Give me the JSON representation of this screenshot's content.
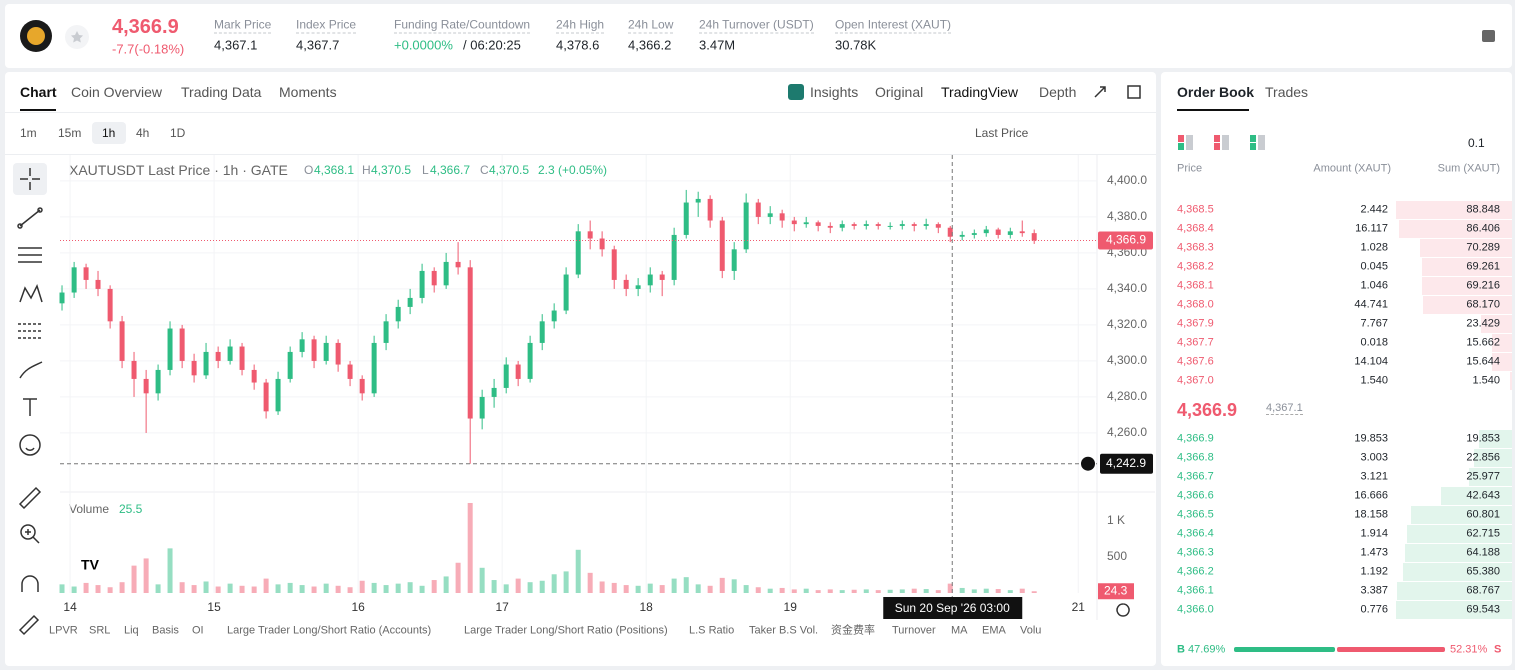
{
  "header": {
    "price": "4,366.9",
    "change": "-7.7(-0.18%)",
    "stats": [
      {
        "label": "Mark Price",
        "value": "4,367.1"
      },
      {
        "label": "Index Price",
        "value": "4,367.7"
      },
      {
        "label": "Funding Rate/Countdown",
        "value": "+0.0000%",
        "extra": "/ 06:20:25"
      },
      {
        "label": "24h High",
        "value": "4,378.6"
      },
      {
        "label": "24h Low",
        "value": "4,366.2"
      },
      {
        "label": "24h Turnover (USDT)",
        "value": "3.47M"
      },
      {
        "label": "Open Interest (XAUT)",
        "value": "30.78K"
      }
    ]
  },
  "tabs": [
    "Chart",
    "Coin Overview",
    "Trading Data",
    "Moments"
  ],
  "view_tabs": [
    "Insights",
    "Original",
    "TradingView",
    "Depth"
  ],
  "timeframes": [
    "1m",
    "15m",
    "1h",
    "4h",
    "1D"
  ],
  "price_type": "Last Price",
  "indicators": [
    "LPVR",
    "SRL",
    "Liq",
    "Basis",
    "OI",
    "Large Trader Long/Short Ratio (Accounts)",
    "Large Trader Long/Short Ratio (Positions)",
    "L.S Ratio",
    "Taker B.S Vol.",
    "资金费率",
    "Turnover",
    "MA",
    "EMA",
    "Volu"
  ],
  "chart_data": {
    "type": "candlestick",
    "title": "XAUTUSDT Last Price · 1h · GATE",
    "legend": {
      "o_label": "O",
      "open": "4,368.1",
      "h_label": "H",
      "high": "4,370.5",
      "l_label": "L",
      "low": "4,366.7",
      "c_label": "C",
      "close": "4,370.5",
      "change": "2.3 (+0.05%)"
    },
    "up_color": "#2ebd85",
    "down_color": "#ef5a6f",
    "xlim": [
      13.93,
      21.13
    ],
    "xticks": [
      14,
      15,
      16,
      17,
      18,
      19,
      21
    ],
    "ylim": [
      4228.3,
      4414.4
    ],
    "yticks": [
      {
        "value": 4260,
        "label": "4,260.0"
      },
      {
        "value": 4280,
        "label": "4,280.0"
      },
      {
        "value": 4300,
        "label": "4,300.0"
      },
      {
        "value": 4320,
        "label": "4,320.0"
      },
      {
        "value": 4340,
        "label": "4,340.0"
      },
      {
        "value": 4360,
        "label": "4,360.0"
      },
      {
        "value": 4380,
        "label": "4,380.0"
      },
      {
        "value": 4400,
        "label": "4,400.0"
      }
    ],
    "x": [
      13.944,
      14.028,
      14.111,
      14.194,
      14.278,
      14.361,
      14.444,
      14.528,
      14.611,
      14.694,
      14.778,
      14.861,
      14.944,
      15.028,
      15.111,
      15.194,
      15.278,
      15.361,
      15.444,
      15.528,
      15.611,
      15.694,
      15.778,
      15.861,
      15.944,
      16.028,
      16.111,
      16.194,
      16.278,
      16.361,
      16.444,
      16.528,
      16.611,
      16.694,
      16.778,
      16.861,
      16.944,
      17.028,
      17.111,
      17.194,
      17.278,
      17.361,
      17.444,
      17.528,
      17.611,
      17.694,
      17.778,
      17.861,
      17.944,
      18.028,
      18.111,
      18.194,
      18.278,
      18.361,
      18.444,
      18.528,
      18.611,
      18.694,
      18.778,
      18.861,
      18.944,
      19.028,
      19.111,
      19.194,
      19.278,
      19.361,
      19.444,
      19.528,
      19.611,
      19.694,
      19.778,
      19.861,
      19.944,
      20.028,
      20.111,
      20.194,
      20.278,
      20.361,
      20.444,
      20.528,
      20.611,
      20.694
    ],
    "ohlc": [
      [
        4332,
        4342,
        4328,
        4338
      ],
      [
        4338,
        4355,
        4335,
        4352
      ],
      [
        4352,
        4354,
        4340,
        4345
      ],
      [
        4345,
        4350,
        4336,
        4340
      ],
      [
        4340,
        4342,
        4318,
        4322
      ],
      [
        4322,
        4325,
        4296,
        4300
      ],
      [
        4300,
        4305,
        4280,
        4290
      ],
      [
        4290,
        4295,
        4260,
        4282
      ],
      [
        4282,
        4298,
        4278,
        4295
      ],
      [
        4295,
        4322,
        4292,
        4318
      ],
      [
        4318,
        4320,
        4296,
        4300
      ],
      [
        4300,
        4304,
        4288,
        4292
      ],
      [
        4292,
        4310,
        4290,
        4305
      ],
      [
        4305,
        4308,
        4296,
        4300
      ],
      [
        4300,
        4312,
        4298,
        4308
      ],
      [
        4308,
        4310,
        4292,
        4295
      ],
      [
        4295,
        4298,
        4284,
        4288
      ],
      [
        4288,
        4290,
        4268,
        4272
      ],
      [
        4272,
        4294,
        4270,
        4290
      ],
      [
        4290,
        4308,
        4288,
        4305
      ],
      [
        4305,
        4316,
        4302,
        4312
      ],
      [
        4312,
        4314,
        4296,
        4300
      ],
      [
        4300,
        4314,
        4298,
        4310
      ],
      [
        4310,
        4312,
        4294,
        4298
      ],
      [
        4298,
        4300,
        4286,
        4290
      ],
      [
        4290,
        4292,
        4278,
        4282
      ],
      [
        4282,
        4314,
        4280,
        4310
      ],
      [
        4310,
        4326,
        4306,
        4322
      ],
      [
        4322,
        4334,
        4318,
        4330
      ],
      [
        4330,
        4340,
        4326,
        4335
      ],
      [
        4335,
        4354,
        4332,
        4350
      ],
      [
        4350,
        4352,
        4338,
        4342
      ],
      [
        4342,
        4360,
        4340,
        4355
      ],
      [
        4355,
        4366,
        4348,
        4352
      ],
      [
        4352,
        4356,
        4242.9,
        4268
      ],
      [
        4268,
        4284,
        4262,
        4280
      ],
      [
        4280,
        4290,
        4274,
        4285
      ],
      [
        4285,
        4302,
        4282,
        4298
      ],
      [
        4298,
        4300,
        4286,
        4290
      ],
      [
        4290,
        4314,
        4288,
        4310
      ],
      [
        4310,
        4326,
        4306,
        4322
      ],
      [
        4322,
        4332,
        4318,
        4328
      ],
      [
        4328,
        4352,
        4326,
        4348
      ],
      [
        4348,
        4376,
        4346,
        4372
      ],
      [
        4372,
        4378,
        4362,
        4368
      ],
      [
        4368,
        4372,
        4358,
        4362
      ],
      [
        4362,
        4364,
        4340,
        4345
      ],
      [
        4345,
        4348,
        4336,
        4340
      ],
      [
        4340,
        4346,
        4336,
        4342
      ],
      [
        4342,
        4352,
        4338,
        4348
      ],
      [
        4348,
        4350,
        4336,
        4345
      ],
      [
        4345,
        4374,
        4342,
        4370
      ],
      [
        4370,
        4395,
        4368,
        4388
      ],
      [
        4388,
        4394,
        4380,
        4390
      ],
      [
        4390,
        4392,
        4374,
        4378
      ],
      [
        4378,
        4380,
        4346,
        4350
      ],
      [
        4350,
        4366,
        4345,
        4362
      ],
      [
        4362,
        4393,
        4360,
        4388
      ],
      [
        4388,
        4390,
        4376,
        4380
      ],
      [
        4380,
        4386,
        4376,
        4382
      ],
      [
        4382,
        4384,
        4374,
        4378
      ],
      [
        4378,
        4380,
        4372,
        4376
      ],
      [
        4376,
        4380,
        4374,
        4377
      ],
      [
        4377,
        4378,
        4372,
        4375
      ],
      [
        4375,
        4377,
        4371,
        4374
      ],
      [
        4374,
        4378,
        4372,
        4376
      ],
      [
        4376,
        4377,
        4373,
        4375
      ],
      [
        4375,
        4378,
        4373,
        4376
      ],
      [
        4376,
        4377,
        4373,
        4375
      ],
      [
        4375,
        4377,
        4373,
        4375
      ],
      [
        4375,
        4378,
        4373,
        4376
      ],
      [
        4376,
        4377,
        4372,
        4375
      ],
      [
        4375,
        4379,
        4373,
        4376
      ],
      [
        4376,
        4377,
        4371,
        4374
      ],
      [
        4374,
        4375,
        4366,
        4369
      ],
      [
        4369,
        4372,
        4367,
        4370
      ],
      [
        4370,
        4373,
        4368,
        4371
      ],
      [
        4371,
        4375,
        4369,
        4373
      ],
      [
        4373,
        4374,
        4368,
        4370
      ],
      [
        4370,
        4374,
        4368,
        4372
      ],
      [
        4372,
        4378,
        4369,
        4371
      ],
      [
        4371,
        4373,
        4365,
        4366.9
      ]
    ],
    "volume_title": "Volume",
    "volume_legend_value": 25.5,
    "volume_ylim": [
      0,
      1361
    ],
    "volume_ticks": [
      500,
      {
        "value": 1000,
        "label": "1 K"
      }
    ],
    "volume": [
      120,
      90,
      140,
      110,
      80,
      150,
      380,
      480,
      120,
      620,
      150,
      110,
      160,
      90,
      130,
      100,
      90,
      200,
      120,
      140,
      110,
      90,
      130,
      100,
      80,
      170,
      140,
      110,
      130,
      150,
      100,
      180,
      230,
      420,
      1250,
      350,
      180,
      120,
      200,
      150,
      170,
      260,
      300,
      600,
      280,
      160,
      140,
      110,
      100,
      130,
      110,
      200,
      220,
      120,
      100,
      210,
      190,
      110,
      80,
      60,
      70,
      50,
      60,
      40,
      50,
      40,
      45,
      50,
      40,
      45,
      50,
      60,
      55,
      40,
      130,
      70,
      50,
      60,
      55,
      40,
      60,
      24.3
    ],
    "last_price": {
      "value": 4366.9,
      "label": "4,366.9"
    },
    "crosshair": {
      "x": 20.125,
      "x_label": "Sun 20 Sep '26 03:00",
      "y": 4242.9,
      "y_label": "4,242.9"
    }
  },
  "order_book": {
    "tabs": [
      "Order Book",
      "Trades"
    ],
    "precision": "0.1",
    "columns": [
      "Price",
      "Amount (XAUT)",
      "Sum (XAUT)"
    ],
    "asks": [
      [
        "4,368.5",
        "2.442",
        "88.848"
      ],
      [
        "4,368.4",
        "16.117",
        "86.406"
      ],
      [
        "4,368.3",
        "1.028",
        "70.289"
      ],
      [
        "4,368.2",
        "0.045",
        "69.261"
      ],
      [
        "4,368.1",
        "1.046",
        "69.216"
      ],
      [
        "4,368.0",
        "44.741",
        "68.170"
      ],
      [
        "4,367.9",
        "7.767",
        "23.429"
      ],
      [
        "4,367.7",
        "0.018",
        "15.662"
      ],
      [
        "4,367.6",
        "14.104",
        "15.644"
      ],
      [
        "4,367.0",
        "1.540",
        "1.540"
      ]
    ],
    "mid_price": "4,366.9",
    "mark_price": "4,367.1",
    "bids": [
      [
        "4,366.9",
        "19.853",
        "19.853"
      ],
      [
        "4,366.8",
        "3.003",
        "22.856"
      ],
      [
        "4,366.7",
        "3.121",
        "25.977"
      ],
      [
        "4,366.6",
        "16.666",
        "42.643"
      ],
      [
        "4,366.5",
        "18.158",
        "60.801"
      ],
      [
        "4,366.4",
        "1.914",
        "62.715"
      ],
      [
        "4,366.3",
        "1.473",
        "64.188"
      ],
      [
        "4,366.2",
        "1.192",
        "65.380"
      ],
      [
        "4,366.1",
        "3.387",
        "68.767"
      ],
      [
        "4,366.0",
        "0.776",
        "69.543"
      ]
    ],
    "ratio": {
      "buy_letter": "B",
      "buy": 47.69,
      "buy_label": "47.69%",
      "sell": 52.31,
      "sell_label": "52.31%",
      "sell_letter": "S"
    }
  }
}
